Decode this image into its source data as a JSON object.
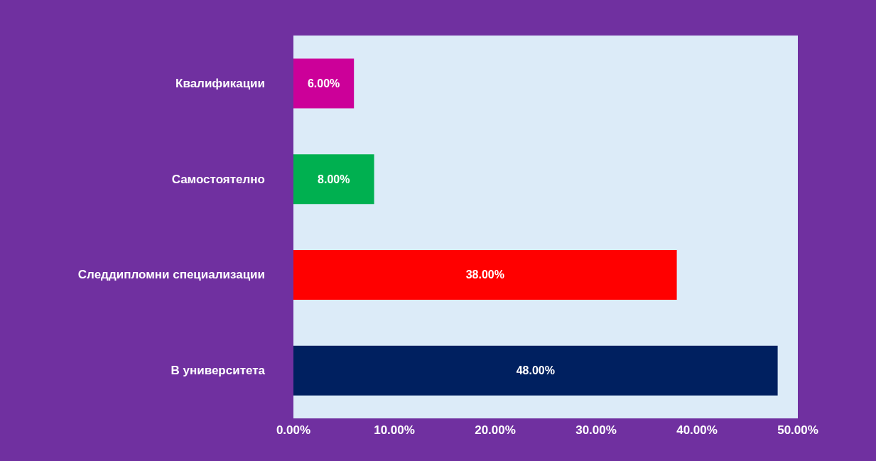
{
  "chart_data": {
    "type": "bar",
    "orientation": "horizontal",
    "categories": [
      "Квалификации",
      "Самостоятелно",
      "Следдипломни специализации",
      "В университета"
    ],
    "values": [
      6,
      8,
      38,
      48
    ],
    "colors": [
      "#cc0099",
      "#00b050",
      "#ff0000",
      "#002060"
    ],
    "value_labels": [
      "6.00%",
      "8.00%",
      "38.00%",
      "48.00%"
    ],
    "xlim": [
      0,
      50
    ],
    "xticks": [
      {
        "value": 0,
        "label": "0.00%"
      },
      {
        "value": 10,
        "label": "10.00%"
      },
      {
        "value": 20,
        "label": "20.00%"
      },
      {
        "value": 30,
        "label": "30.00%"
      },
      {
        "value": 40,
        "label": "40.00%"
      },
      {
        "value": 50,
        "label": "50.00%"
      }
    ],
    "grid": false
  }
}
